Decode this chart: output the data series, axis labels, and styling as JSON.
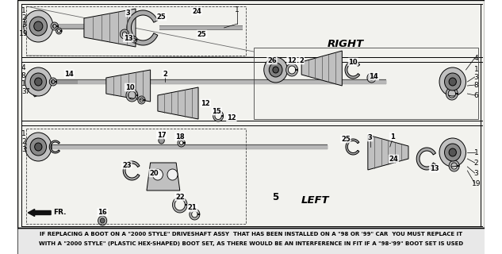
{
  "background_color": "#ffffff",
  "diagram_bg": "#f0f0eb",
  "border_color": "#000000",
  "text_color": "#000000",
  "footnote_line1": "IF REPLACING A BOOT ON A \"2000 STYLE\" DRIVESHAFT ASSY  THAT HAS BEEN INSTALLED ON A \"98 OR '99\" CAR  YOU MUST REPLACE IT",
  "footnote_line2": "WITH A \"2000 STYLE\" (PLASTIC HEX-SHAPED) BOOT SET, AS THERE WOULD BE AN INTERFERENCE IN FIT IF A \"98-'99\" BOOT SET IS USED",
  "label_RIGHT": "RIGHT",
  "label_LEFT": "LEFT",
  "label_FR": "FR.",
  "fig_width": 6.33,
  "fig_height": 3.2,
  "dpi": 100,
  "footnote_fontsize": 5.0,
  "label_fontsize": 7.5,
  "callout_fontsize": 6.0,
  "num_fontsize": 6.5
}
